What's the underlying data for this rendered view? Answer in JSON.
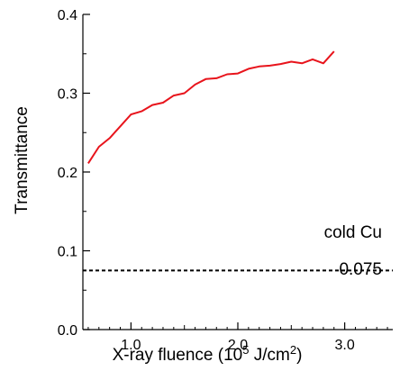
{
  "chart_data": {
    "type": "line",
    "title": "",
    "xlabel": {
      "main": "X-ray fluence (10",
      "sup1": "5",
      "mid": " J/cm",
      "sup2": "2",
      "end": ")"
    },
    "ylabel": "Transmittance",
    "xlim": [
      0.55,
      3.45
    ],
    "ylim": [
      0.0,
      0.4
    ],
    "xticks": [
      1.0,
      2.0,
      3.0
    ],
    "xtick_labels": [
      "1.0",
      "2.0",
      "3.0"
    ],
    "yticks": [
      0.0,
      0.1,
      0.2,
      0.3,
      0.4
    ],
    "ytick_labels": [
      "0.0",
      "0.1",
      "0.2",
      "0.3",
      "0.4"
    ],
    "grid": false,
    "series": [
      {
        "color": "#e8141c",
        "x": [
          0.6,
          0.7,
          0.8,
          0.9,
          1.0,
          1.1,
          1.2,
          1.3,
          1.4,
          1.5,
          1.6,
          1.7,
          1.8,
          1.9,
          2.0,
          2.1,
          2.2,
          2.3,
          2.4,
          2.5,
          2.6,
          2.7,
          2.8,
          2.9,
          3.0,
          3.1,
          3.2,
          3.3
        ],
        "y": [
          0.211,
          0.232,
          0.243,
          0.258,
          0.273,
          0.277,
          0.285,
          0.288,
          0.297,
          0.3,
          0.311,
          0.318,
          0.319,
          0.324,
          0.325,
          0.331,
          0.334,
          0.335,
          0.337,
          0.34,
          0.338,
          0.343,
          0.338,
          0.353,
          null,
          null,
          null,
          null
        ]
      }
    ],
    "reference_line": {
      "y": 0.075,
      "style": "dashed",
      "color": "#000000",
      "label_above": "cold Cu",
      "label_below": "0.075"
    }
  }
}
